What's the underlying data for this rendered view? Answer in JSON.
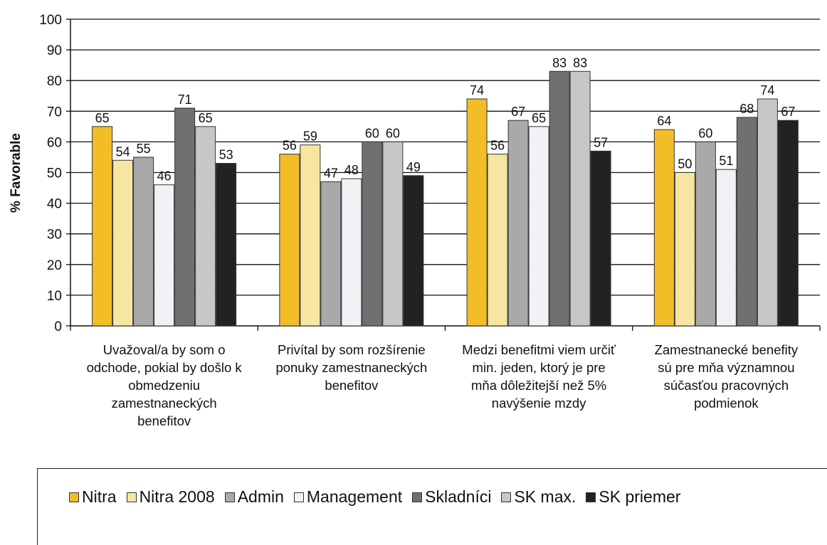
{
  "chart_data": {
    "type": "bar",
    "title": "",
    "ylabel": "% Favorable",
    "xlabel": "",
    "ylim": [
      0,
      100
    ],
    "yticks": [
      0,
      10,
      20,
      30,
      40,
      50,
      60,
      70,
      80,
      90,
      100
    ],
    "grid": true,
    "legend_position": "bottom",
    "categories": [
      "Uvažoval/a by som o odchode, pokial by došlo k obmedzeniu zamestnaneckých benefitov",
      "Privítal by som rozšírenie ponuky zamestnaneckých benefitov",
      "Medzi benefitmi viem určiť min. jeden, ktorý je pre mňa dôležitejší než 5% navýšenie mzdy",
      "Zamestnanecké benefity sú pre mňa významnou súčasťou pracovných podmienok"
    ],
    "category_lines": [
      [
        "Uvažoval/a by som o",
        "odchode, pokial by došlo k",
        "obmedzeniu",
        "zamestnaneckých",
        "benefitov"
      ],
      [
        "Privítal by som rozšírenie",
        "ponuky zamestnaneckých",
        "benefitov"
      ],
      [
        "Medzi benefitmi viem určiť",
        "min. jeden, ktorý je pre",
        "mňa dôležitejší než 5%",
        "navýšenie mzdy"
      ],
      [
        "Zamestnanecké benefity",
        "sú pre mňa významnou",
        "súčasťou pracovných",
        "podmienok"
      ]
    ],
    "series": [
      {
        "name": "Nitra",
        "color": "#f2bd27",
        "values": [
          65,
          56,
          74,
          64
        ]
      },
      {
        "name": "Nitra 2008",
        "color": "#f7e6a1",
        "values": [
          54,
          59,
          56,
          50
        ]
      },
      {
        "name": "Admin",
        "color": "#a9a9a9",
        "values": [
          55,
          47,
          67,
          60
        ]
      },
      {
        "name": "Management",
        "color": "#f1f1f6",
        "values": [
          46,
          48,
          65,
          51
        ]
      },
      {
        "name": "Skladníci",
        "color": "#707070",
        "values": [
          71,
          60,
          83,
          68
        ]
      },
      {
        "name": "SK max.",
        "color": "#c7c7c7",
        "values": [
          65,
          60,
          83,
          74
        ]
      },
      {
        "name": "SK priemer",
        "color": "#222222",
        "values": [
          53,
          49,
          57,
          67
        ]
      }
    ]
  }
}
